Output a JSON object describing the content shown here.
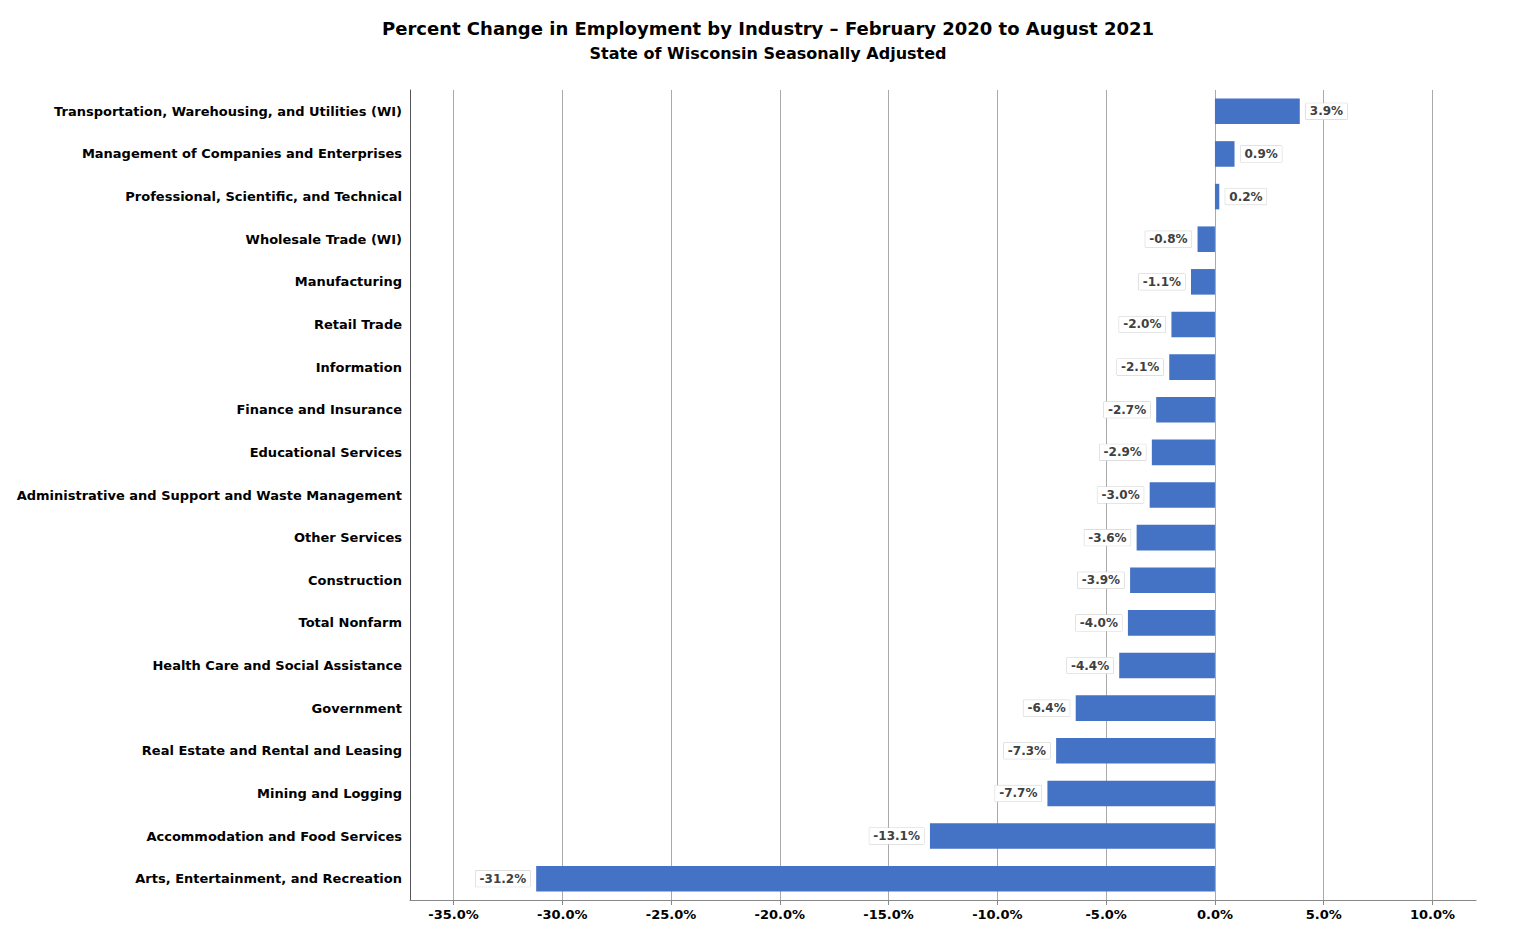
{
  "chart_data": {
    "type": "bar",
    "orientation": "horizontal",
    "title": "Percent Change in Employment by Industry – February 2020 to August 2021",
    "subtitle": "State of Wisconsin Seasonally Adjusted",
    "categories": [
      "Transportation, Warehousing, and Utilities (WI)",
      "Management of Companies and Enterprises",
      "Professional, Scientific, and Technical",
      "Wholesale Trade (WI)",
      "Manufacturing",
      "Retail Trade",
      "Information",
      "Finance and Insurance",
      "Educational Services",
      "Administrative and Support and Waste Management",
      "Other Services",
      "Construction",
      "Total Nonfarm",
      "Health Care and Social Assistance",
      "Government",
      "Real Estate and Rental and Leasing",
      "Mining and Logging",
      "Accommodation and Food Services",
      "Arts, Entertainment, and Recreation"
    ],
    "values": [
      3.9,
      0.9,
      0.2,
      -0.8,
      -1.1,
      -2.0,
      -2.1,
      -2.7,
      -2.9,
      -3.0,
      -3.6,
      -3.9,
      -4.0,
      -4.4,
      -6.4,
      -7.3,
      -7.7,
      -13.1,
      -31.2
    ],
    "value_labels": [
      "3.9%",
      "0.9%",
      "0.2%",
      "-0.8%",
      "-1.1%",
      "-2.0%",
      "-2.1%",
      "-2.7%",
      "-2.9%",
      "-3.0%",
      "-3.6%",
      "-3.9%",
      "-4.0%",
      "-4.4%",
      "-6.4%",
      "-7.3%",
      "-7.7%",
      "-13.1%",
      "-31.2%"
    ],
    "color": "#4472C4",
    "xlim": [
      -37,
      12
    ],
    "xticks": [
      {
        "value": -35,
        "label": "-35.0%"
      },
      {
        "value": -30,
        "label": "-30.0%"
      },
      {
        "value": -25,
        "label": "-25.0%"
      },
      {
        "value": -20,
        "label": "-20.0%"
      },
      {
        "value": -15,
        "label": "-15.0%"
      },
      {
        "value": -10,
        "label": "-10.0%"
      },
      {
        "value": -5,
        "label": "-5.0%"
      },
      {
        "value": 0,
        "label": "0.0%"
      },
      {
        "value": 5,
        "label": "5.0%"
      },
      {
        "value": 10,
        "label": "10.0%"
      }
    ],
    "grid": true,
    "data_labels": true
  }
}
